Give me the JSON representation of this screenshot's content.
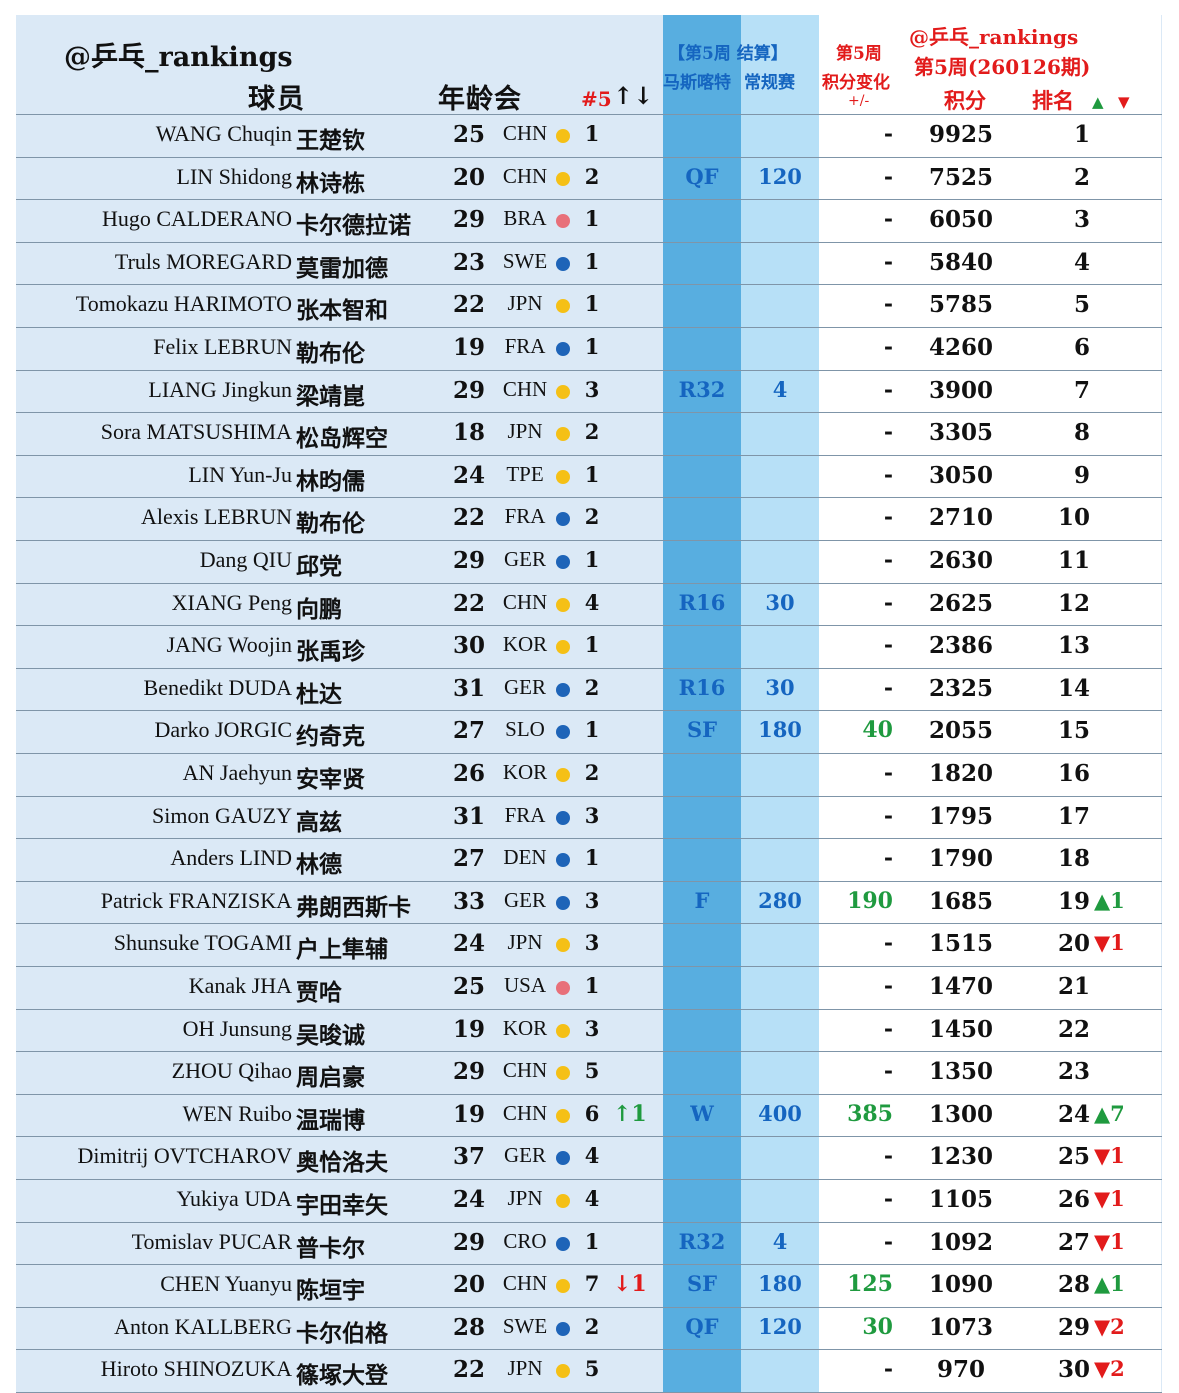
{
  "header": {
    "brand": "@乒乓_rankings",
    "player": "球员",
    "age": "年龄会",
    "rank_label": "#5",
    "arrows": "↑↓",
    "week_line1": "【第5周 结算】",
    "week_event": "马斯喀特",
    "week_regular": "常规赛",
    "change_line1": "第5周",
    "change_line2": "积分变化",
    "change_line3": "+/-",
    "brand2": "@乒乓_rankings",
    "period": "第5周(260126期)",
    "points": "积分",
    "position": "排名",
    "up_symbol": "▲",
    "down_symbol": "▼"
  },
  "colors": {
    "sheet": "#dbe9f6",
    "round_column": "#58aee0",
    "points_column": "#b7e0f7",
    "red": "#e21b1b",
    "green": "#1f9a3f",
    "blue": "#1565c0",
    "dot_yellow": "#f5c016",
    "dot_blue": "#1e64b8",
    "dot_red": "#e8707a"
  },
  "rows": [
    {
      "en": "WANG Chuqin",
      "zh": "王楚钦",
      "age": "25",
      "country": "CHN",
      "dot": "yellow",
      "nr": "1",
      "move": "",
      "move_dir": "",
      "round": "",
      "pts": "",
      "change": "-",
      "points": "9925",
      "rank": "1",
      "trend": "",
      "trend_dir": ""
    },
    {
      "en": "LIN Shidong",
      "zh": "林诗栋",
      "age": "20",
      "country": "CHN",
      "dot": "yellow",
      "nr": "2",
      "move": "",
      "move_dir": "",
      "round": "QF",
      "pts": "120",
      "change": "-",
      "points": "7525",
      "rank": "2",
      "trend": "",
      "trend_dir": ""
    },
    {
      "en": "Hugo CALDERANO",
      "zh": "卡尔德拉诺",
      "age": "29",
      "country": "BRA",
      "dot": "red",
      "nr": "1",
      "move": "",
      "move_dir": "",
      "round": "",
      "pts": "",
      "change": "-",
      "points": "6050",
      "rank": "3",
      "trend": "",
      "trend_dir": ""
    },
    {
      "en": "Truls MOREGARD",
      "zh": "莫雷加德",
      "age": "23",
      "country": "SWE",
      "dot": "blue",
      "nr": "1",
      "move": "",
      "move_dir": "",
      "round": "",
      "pts": "",
      "change": "-",
      "points": "5840",
      "rank": "4",
      "trend": "",
      "trend_dir": ""
    },
    {
      "en": "Tomokazu HARIMOTO",
      "zh": "张本智和",
      "age": "22",
      "country": "JPN",
      "dot": "yellow",
      "nr": "1",
      "move": "",
      "move_dir": "",
      "round": "",
      "pts": "",
      "change": "-",
      "points": "5785",
      "rank": "5",
      "trend": "",
      "trend_dir": ""
    },
    {
      "en": "Felix LEBRUN",
      "zh": "勒布伦",
      "age": "19",
      "country": "FRA",
      "dot": "blue",
      "nr": "1",
      "move": "",
      "move_dir": "",
      "round": "",
      "pts": "",
      "change": "-",
      "points": "4260",
      "rank": "6",
      "trend": "",
      "trend_dir": ""
    },
    {
      "en": "LIANG Jingkun",
      "zh": "梁靖崑",
      "age": "29",
      "country": "CHN",
      "dot": "yellow",
      "nr": "3",
      "move": "",
      "move_dir": "",
      "round": "R32",
      "pts": "4",
      "change": "-",
      "points": "3900",
      "rank": "7",
      "trend": "",
      "trend_dir": ""
    },
    {
      "en": "Sora MATSUSHIMA",
      "zh": "松岛辉空",
      "age": "18",
      "country": "JPN",
      "dot": "yellow",
      "nr": "2",
      "move": "",
      "move_dir": "",
      "round": "",
      "pts": "",
      "change": "-",
      "points": "3305",
      "rank": "8",
      "trend": "",
      "trend_dir": ""
    },
    {
      "en": "LIN Yun-Ju",
      "zh": "林昀儒",
      "age": "24",
      "country": "TPE",
      "dot": "yellow",
      "nr": "1",
      "move": "",
      "move_dir": "",
      "round": "",
      "pts": "",
      "change": "-",
      "points": "3050",
      "rank": "9",
      "trend": "",
      "trend_dir": ""
    },
    {
      "en": "Alexis LEBRUN",
      "zh": "勒布伦",
      "age": "22",
      "country": "FRA",
      "dot": "blue",
      "nr": "2",
      "move": "",
      "move_dir": "",
      "round": "",
      "pts": "",
      "change": "-",
      "points": "2710",
      "rank": "10",
      "trend": "",
      "trend_dir": ""
    },
    {
      "en": "Dang QIU",
      "zh": "邱党",
      "age": "29",
      "country": "GER",
      "dot": "blue",
      "nr": "1",
      "move": "",
      "move_dir": "",
      "round": "",
      "pts": "",
      "change": "-",
      "points": "2630",
      "rank": "11",
      "trend": "",
      "trend_dir": ""
    },
    {
      "en": "XIANG Peng",
      "zh": "向鹏",
      "age": "22",
      "country": "CHN",
      "dot": "yellow",
      "nr": "4",
      "move": "",
      "move_dir": "",
      "round": "R16",
      "pts": "30",
      "change": "-",
      "points": "2625",
      "rank": "12",
      "trend": "",
      "trend_dir": ""
    },
    {
      "en": "JANG Woojin",
      "zh": "张禹珍",
      "age": "30",
      "country": "KOR",
      "dot": "yellow",
      "nr": "1",
      "move": "",
      "move_dir": "",
      "round": "",
      "pts": "",
      "change": "-",
      "points": "2386",
      "rank": "13",
      "trend": "",
      "trend_dir": ""
    },
    {
      "en": "Benedikt DUDA",
      "zh": "杜达",
      "age": "31",
      "country": "GER",
      "dot": "blue",
      "nr": "2",
      "move": "",
      "move_dir": "",
      "round": "R16",
      "pts": "30",
      "change": "-",
      "points": "2325",
      "rank": "14",
      "trend": "",
      "trend_dir": ""
    },
    {
      "en": "Darko JORGIC",
      "zh": "约奇克",
      "age": "27",
      "country": "SLO",
      "dot": "blue",
      "nr": "1",
      "move": "",
      "move_dir": "",
      "round": "SF",
      "pts": "180",
      "change": "40",
      "points": "2055",
      "rank": "15",
      "trend": "",
      "trend_dir": ""
    },
    {
      "en": "AN Jaehyun",
      "zh": "安宰贤",
      "age": "26",
      "country": "KOR",
      "dot": "yellow",
      "nr": "2",
      "move": "",
      "move_dir": "",
      "round": "",
      "pts": "",
      "change": "-",
      "points": "1820",
      "rank": "16",
      "trend": "",
      "trend_dir": ""
    },
    {
      "en": "Simon GAUZY",
      "zh": "高兹",
      "age": "31",
      "country": "FRA",
      "dot": "blue",
      "nr": "3",
      "move": "",
      "move_dir": "",
      "round": "",
      "pts": "",
      "change": "-",
      "points": "1795",
      "rank": "17",
      "trend": "",
      "trend_dir": ""
    },
    {
      "en": "Anders LIND",
      "zh": "林德",
      "age": "27",
      "country": "DEN",
      "dot": "blue",
      "nr": "1",
      "move": "",
      "move_dir": "",
      "round": "",
      "pts": "",
      "change": "-",
      "points": "1790",
      "rank": "18",
      "trend": "",
      "trend_dir": ""
    },
    {
      "en": "Patrick FRANZISKA",
      "zh": "弗朗西斯卡",
      "age": "33",
      "country": "GER",
      "dot": "blue",
      "nr": "3",
      "move": "",
      "move_dir": "",
      "round": "F",
      "pts": "280",
      "change": "190",
      "points": "1685",
      "rank": "19",
      "trend": "▲1",
      "trend_dir": "up"
    },
    {
      "en": "Shunsuke TOGAMI",
      "zh": "户上隼辅",
      "age": "24",
      "country": "JPN",
      "dot": "yellow",
      "nr": "3",
      "move": "",
      "move_dir": "",
      "round": "",
      "pts": "",
      "change": "-",
      "points": "1515",
      "rank": "20",
      "trend": "▼1",
      "trend_dir": "dn"
    },
    {
      "en": "Kanak JHA",
      "zh": "贾哈",
      "age": "25",
      "country": "USA",
      "dot": "red",
      "nr": "1",
      "move": "",
      "move_dir": "",
      "round": "",
      "pts": "",
      "change": "-",
      "points": "1470",
      "rank": "21",
      "trend": "",
      "trend_dir": ""
    },
    {
      "en": "OH Junsung",
      "zh": "吴晙诚",
      "age": "19",
      "country": "KOR",
      "dot": "yellow",
      "nr": "3",
      "move": "",
      "move_dir": "",
      "round": "",
      "pts": "",
      "change": "-",
      "points": "1450",
      "rank": "22",
      "trend": "",
      "trend_dir": ""
    },
    {
      "en": "ZHOU Qihao",
      "zh": "周启豪",
      "age": "29",
      "country": "CHN",
      "dot": "yellow",
      "nr": "5",
      "move": "",
      "move_dir": "",
      "round": "",
      "pts": "",
      "change": "-",
      "points": "1350",
      "rank": "23",
      "trend": "",
      "trend_dir": ""
    },
    {
      "en": "WEN Ruibo",
      "zh": "温瑞博",
      "age": "19",
      "country": "CHN",
      "dot": "yellow",
      "nr": "6",
      "move": "↑1",
      "move_dir": "up",
      "round": "W",
      "pts": "400",
      "change": "385",
      "points": "1300",
      "rank": "24",
      "trend": "▲7",
      "trend_dir": "up"
    },
    {
      "en": "Dimitrij OVTCHAROV",
      "zh": "奥恰洛夫",
      "age": "37",
      "country": "GER",
      "dot": "blue",
      "nr": "4",
      "move": "",
      "move_dir": "",
      "round": "",
      "pts": "",
      "change": "-",
      "points": "1230",
      "rank": "25",
      "trend": "▼1",
      "trend_dir": "dn"
    },
    {
      "en": "Yukiya UDA",
      "zh": "宇田幸矢",
      "age": "24",
      "country": "JPN",
      "dot": "yellow",
      "nr": "4",
      "move": "",
      "move_dir": "",
      "round": "",
      "pts": "",
      "change": "-",
      "points": "1105",
      "rank": "26",
      "trend": "▼1",
      "trend_dir": "dn"
    },
    {
      "en": "Tomislav PUCAR",
      "zh": "普卡尔",
      "age": "29",
      "country": "CRO",
      "dot": "blue",
      "nr": "1",
      "move": "",
      "move_dir": "",
      "round": "R32",
      "pts": "4",
      "change": "-",
      "points": "1092",
      "rank": "27",
      "trend": "▼1",
      "trend_dir": "dn"
    },
    {
      "en": "CHEN Yuanyu",
      "zh": "陈垣宇",
      "age": "20",
      "country": "CHN",
      "dot": "yellow",
      "nr": "7",
      "move": "↓1",
      "move_dir": "dn",
      "round": "SF",
      "pts": "180",
      "change": "125",
      "points": "1090",
      "rank": "28",
      "trend": "▲1",
      "trend_dir": "up"
    },
    {
      "en": "Anton KALLBERG",
      "zh": "卡尔伯格",
      "age": "28",
      "country": "SWE",
      "dot": "blue",
      "nr": "2",
      "move": "",
      "move_dir": "",
      "round": "QF",
      "pts": "120",
      "change": "30",
      "points": "1073",
      "rank": "29",
      "trend": "▼2",
      "trend_dir": "dn"
    },
    {
      "en": "Hiroto SHINOZUKA",
      "zh": "篠塚大登",
      "age": "22",
      "country": "JPN",
      "dot": "yellow",
      "nr": "5",
      "move": "",
      "move_dir": "",
      "round": "",
      "pts": "",
      "change": "-",
      "points": "970",
      "rank": "30",
      "trend": "▼2",
      "trend_dir": "dn"
    }
  ]
}
